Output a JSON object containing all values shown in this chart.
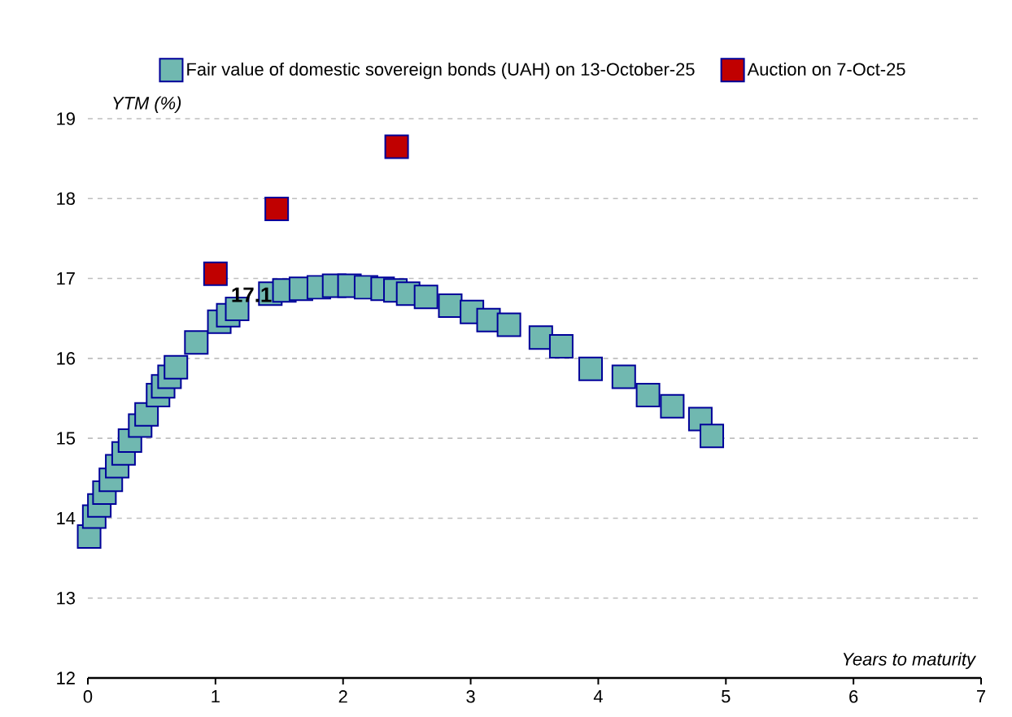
{
  "chart_data": {
    "type": "scatter",
    "xlabel": "Years to maturity",
    "ylabel": "YTM (%)",
    "series": [
      {
        "name": "Fair value of domestic sovereign bonds (UAH) on 13-October-25",
        "color": "#70b8b0",
        "x": [
          0.01,
          0.05,
          0.09,
          0.13,
          0.18,
          0.23,
          0.28,
          0.33,
          0.41,
          0.46,
          0.55,
          0.59,
          0.64,
          0.69,
          0.85,
          1.03,
          1.1,
          1.17,
          1.43,
          1.54,
          1.67,
          1.81,
          1.93,
          2.05,
          2.18,
          2.31,
          2.41,
          2.51,
          2.65,
          2.84,
          3.01,
          3.14,
          3.3,
          3.55,
          3.71,
          3.94,
          4.2,
          4.39,
          4.58,
          4.8,
          4.89
        ],
        "values": [
          13.77,
          14.02,
          14.16,
          14.32,
          14.48,
          14.65,
          14.81,
          14.97,
          15.16,
          15.3,
          15.54,
          15.65,
          15.77,
          15.89,
          16.2,
          16.46,
          16.54,
          16.62,
          16.81,
          16.85,
          16.87,
          16.89,
          16.91,
          16.91,
          16.89,
          16.87,
          16.85,
          16.81,
          16.77,
          16.66,
          16.58,
          16.48,
          16.42,
          16.26,
          16.15,
          15.87,
          15.77,
          15.54,
          15.4,
          15.24,
          15.03
        ]
      },
      {
        "name": "Auction on 7-Oct-25",
        "color": "#c00000",
        "x": [
          1.0,
          1.48,
          2.42
        ],
        "values": [
          17.06,
          17.87,
          18.65
        ],
        "value_labels": [
          "17.1",
          null,
          null
        ]
      }
    ],
    "xlim": [
      0,
      7
    ],
    "xticks": [
      0,
      1,
      2,
      3,
      4,
      5,
      6,
      7
    ],
    "ylim": [
      12,
      19
    ],
    "yticks": [
      12,
      13,
      14,
      15,
      16,
      17,
      18,
      19
    ],
    "grid": "y",
    "legend": "top",
    "marker": "square"
  }
}
